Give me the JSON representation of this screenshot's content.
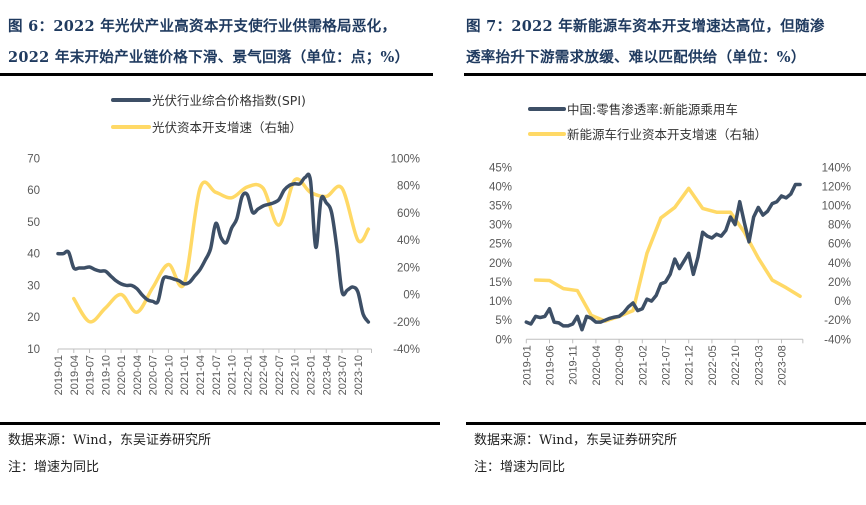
{
  "left": {
    "title_line1": "图 6：2022 年光伏产业高资本开支使行业供需格局恶化，",
    "title_line2": "2022 年末开始产业链价格下滑、景气回落（单位：点；%）",
    "source": "数据来源：Wind，东吴证券研究所",
    "note": "注：增速为同比"
  },
  "right": {
    "title_line1": "图 7：2022 年新能源车资本开支增速达高位，但随渗",
    "title_line2": "透率抬升下游需求放缓、难以匹配供给（单位：%）",
    "source": "数据来源：Wind，东吴证券研究所",
    "note": "注：增速为同比"
  },
  "chart_data": [
    {
      "type": "line",
      "x_start": "2019-01",
      "x_tick_labels": [
        "2019-01",
        "2019-04",
        "2019-07",
        "2019-10",
        "2020-01",
        "2020-04",
        "2020-07",
        "2020-10",
        "2021-01",
        "2021-04",
        "2021-07",
        "2021-10",
        "2022-01",
        "2022-04",
        "2022-07",
        "2022-10",
        "2023-01",
        "2023-04",
        "2023-07",
        "2023-10"
      ],
      "y_left": {
        "range": [
          10,
          70
        ],
        "ticks": [
          "70",
          "60",
          "50",
          "40",
          "30",
          "20",
          "10"
        ]
      },
      "y_right": {
        "range": [
          -40,
          100
        ],
        "ticks": [
          "100%",
          "80%",
          "60%",
          "40%",
          "20%",
          "0%",
          "-20%",
          "-40%"
        ]
      },
      "legend_position": "top",
      "grid": false,
      "series": [
        {
          "name": "光伏行业综合价格指数(SPI)",
          "axis": "left",
          "color": "#3d4f66",
          "x": [
            "2019-01",
            "2019-02",
            "2019-03",
            "2019-04",
            "2019-05",
            "2019-06",
            "2019-07",
            "2019-08",
            "2019-09",
            "2019-10",
            "2019-11",
            "2019-12",
            "2020-01",
            "2020-02",
            "2020-03",
            "2020-04",
            "2020-05",
            "2020-06",
            "2020-07",
            "2020-08",
            "2020-09",
            "2020-10",
            "2020-11",
            "2020-12",
            "2021-01",
            "2021-02",
            "2021-03",
            "2021-04",
            "2021-05",
            "2021-06",
            "2021-07",
            "2021-08",
            "2021-09",
            "2021-10",
            "2021-11",
            "2021-12",
            "2022-01",
            "2022-02",
            "2022-03",
            "2022-04",
            "2022-05",
            "2022-06",
            "2022-07",
            "2022-08",
            "2022-09",
            "2022-10",
            "2022-11",
            "2022-12",
            "2023-01",
            "2023-02",
            "2023-03",
            "2023-04",
            "2023-05",
            "2023-06",
            "2023-07",
            "2023-08",
            "2023-09",
            "2023-10",
            "2023-11",
            "2023-12"
          ],
          "values": [
            40,
            40,
            40.5,
            35.5,
            35.5,
            35.5,
            35.8,
            35,
            34.5,
            34.5,
            33,
            31.5,
            30.5,
            30,
            30,
            29,
            27,
            25.5,
            25,
            25,
            32,
            32.5,
            32,
            31.5,
            30.5,
            31,
            33,
            35,
            38,
            41.5,
            49.5,
            45,
            43.5,
            48,
            51,
            58,
            58.5,
            53,
            54,
            55,
            55.5,
            56,
            57,
            60,
            61.5,
            62,
            62,
            64,
            63,
            42,
            57,
            56,
            53,
            42,
            28,
            28.5,
            29.5,
            28,
            21,
            18.5
          ]
        },
        {
          "name": "光伏资本开支增速（右轴）",
          "axis": "right",
          "color": "#ffd966",
          "x": [
            "2019-04",
            "2019-07",
            "2019-10",
            "2020-01",
            "2020-04",
            "2020-07",
            "2020-10",
            "2021-01",
            "2021-04",
            "2021-07",
            "2021-10",
            "2022-01",
            "2022-04",
            "2022-07",
            "2022-10",
            "2023-01",
            "2023-04",
            "2023-07",
            "2023-10",
            "2023-12"
          ],
          "values": [
            -3,
            -20,
            -10,
            0,
            -13,
            5,
            22,
            8,
            78,
            75,
            71,
            79,
            78,
            51,
            84,
            75,
            72,
            78,
            40,
            48
          ]
        }
      ]
    },
    {
      "type": "line",
      "x_start": "2019-01",
      "x_tick_labels": [
        "2019-01",
        "2019-06",
        "2019-11",
        "2020-04",
        "2020-09",
        "2021-02",
        "2021-07",
        "2021-12",
        "2022-05",
        "2022-10",
        "2023-03",
        "2023-08"
      ],
      "y_left": {
        "range": [
          0,
          45
        ],
        "ticks": [
          "45%",
          "40%",
          "35%",
          "30%",
          "25%",
          "20%",
          "15%",
          "10%",
          "5%",
          "0%"
        ]
      },
      "y_right": {
        "range": [
          -40,
          140
        ],
        "ticks": [
          "140%",
          "120%",
          "100%",
          "80%",
          "60%",
          "40%",
          "20%",
          "0%",
          "-20%",
          "-40%"
        ]
      },
      "legend_position": "top",
      "grid": false,
      "series": [
        {
          "name": "中国:零售渗透率:新能源乘用车",
          "axis": "left",
          "color": "#3d4f66",
          "x": [
            "2019-01",
            "2019-02",
            "2019-03",
            "2019-04",
            "2019-05",
            "2019-06",
            "2019-07",
            "2019-08",
            "2019-09",
            "2019-10",
            "2019-11",
            "2019-12",
            "2020-01",
            "2020-02",
            "2020-03",
            "2020-04",
            "2020-05",
            "2020-06",
            "2020-07",
            "2020-08",
            "2020-09",
            "2020-10",
            "2020-11",
            "2020-12",
            "2021-01",
            "2021-02",
            "2021-03",
            "2021-04",
            "2021-05",
            "2021-06",
            "2021-07",
            "2021-08",
            "2021-09",
            "2021-10",
            "2021-11",
            "2021-12",
            "2022-01",
            "2022-02",
            "2022-03",
            "2022-04",
            "2022-05",
            "2022-06",
            "2022-07",
            "2022-08",
            "2022-09",
            "2022-10",
            "2022-11",
            "2022-12",
            "2023-01",
            "2023-02",
            "2023-03",
            "2023-04",
            "2023-05",
            "2023-06",
            "2023-07",
            "2023-08",
            "2023-09",
            "2023-10",
            "2023-11",
            "2023-12"
          ],
          "values": [
            4.5,
            4,
            6,
            5.7,
            6,
            8,
            4.5,
            4.3,
            3.5,
            3.5,
            4,
            6,
            2.5,
            6,
            5.5,
            4.5,
            4.5,
            5,
            5.5,
            5.8,
            6,
            7,
            8.5,
            9.5,
            7.5,
            8,
            10.5,
            10,
            11.5,
            14.5,
            15,
            17,
            21,
            18.5,
            20.5,
            22.5,
            17,
            21.5,
            28,
            27,
            26.5,
            27.5,
            27,
            28.5,
            32,
            30,
            36,
            30.5,
            25.5,
            32,
            34.5,
            32.5,
            33.5,
            35.5,
            36,
            37.5,
            37,
            38,
            40.5,
            40.5
          ]
        },
        {
          "name": "新能源车行业资本开支增速（右轴）",
          "axis": "right",
          "color": "#ffd966",
          "x": [
            "2019-03",
            "2019-06",
            "2019-09",
            "2019-12",
            "2020-03",
            "2020-06",
            "2020-09",
            "2020-12",
            "2021-03",
            "2021-06",
            "2021-09",
            "2021-12",
            "2022-03",
            "2022-06",
            "2022-09",
            "2022-12",
            "2023-03",
            "2023-06",
            "2023-09",
            "2023-12"
          ],
          "values": [
            22,
            21.5,
            13,
            11,
            -15,
            -21,
            -16,
            -10,
            50,
            87,
            98,
            118,
            97,
            93,
            93,
            72,
            45,
            22,
            14,
            5
          ]
        }
      ]
    }
  ]
}
